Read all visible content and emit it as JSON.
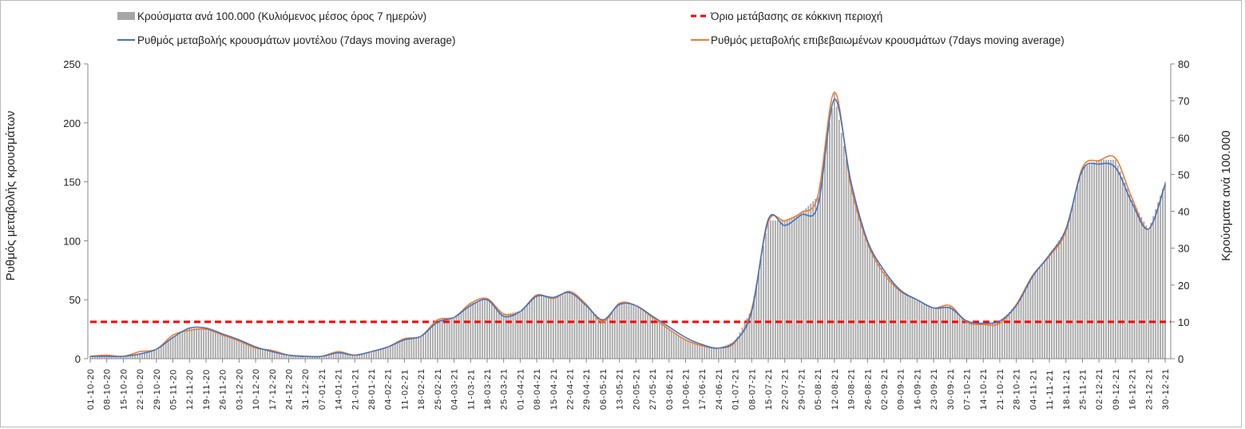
{
  "chart_data": {
    "type": "bar+line",
    "legend": {
      "bars": "Κρούσματα ανά 100.000 (Κυλιόμενος μέσος όρος 7 ημερών)",
      "threshold": "Όριο μετάβασης σε κόκκινη περιοχή",
      "model": "Ρυθμός μεταβολής κρουσμάτων μοντέλου (7days moving average)",
      "confirmed": "Ρυθμός μεταβολής επιβεβαιωμένων κρουσμάτων (7days moving average)"
    },
    "legend_position": "top",
    "ylabel_left": "Ρυθμός μεταβολής κρουσμάτων",
    "ylabel_right": "Κρούσματα ανά 100.000",
    "ylim_left": [
      0,
      250
    ],
    "yticks_left": [
      "0",
      "50",
      "100",
      "150",
      "200",
      "250"
    ],
    "ylim_right": [
      0,
      80
    ],
    "yticks_right": [
      "0",
      "10",
      "20",
      "30",
      "40",
      "50",
      "60",
      "70",
      "80"
    ],
    "threshold_right": 10,
    "colors": {
      "bars": "#a6a6a6",
      "threshold": "#ff0000",
      "model": "#4472c4",
      "confirmed": "#ed7d31"
    },
    "categories": [
      "01-10-20",
      "08-10-20",
      "15-10-20",
      "22-10-20",
      "29-10-20",
      "05-11-20",
      "12-11-20",
      "19-11-20",
      "26-11-20",
      "03-12-20",
      "10-12-20",
      "17-12-20",
      "24-12-20",
      "31-12-20",
      "07-01-21",
      "14-01-21",
      "21-01-21",
      "28-01-21",
      "04-02-21",
      "11-02-21",
      "18-02-21",
      "25-02-21",
      "04-03-21",
      "11-03-21",
      "18-03-21",
      "25-03-21",
      "01-04-21",
      "08-04-21",
      "15-04-21",
      "22-04-21",
      "29-04-21",
      "06-05-21",
      "13-05-21",
      "20-05-21",
      "27-05-21",
      "03-06-21",
      "10-06-21",
      "17-06-21",
      "24-06-21",
      "01-07-21",
      "08-07-21",
      "15-07-21",
      "22-07-21",
      "29-07-21",
      "05-08-21",
      "12-08-21",
      "19-08-21",
      "26-08-21",
      "02-09-21",
      "09-09-21",
      "16-09-21",
      "23-09-21",
      "30-09-21",
      "07-10-21",
      "14-10-21",
      "21-10-21",
      "28-10-21",
      "04-11-21",
      "11-11-21",
      "18-11-21",
      "25-11-21",
      "02-12-21",
      "09-12-21",
      "16-12-21",
      "23-12-21",
      "30-12-21"
    ],
    "model": [
      2,
      2,
      2,
      4,
      8,
      18,
      26,
      26,
      21,
      16,
      10,
      6,
      3,
      2,
      2,
      5,
      3,
      6,
      10,
      16,
      19,
      31,
      35,
      45,
      50,
      36,
      40,
      53,
      52,
      56,
      45,
      33,
      46,
      45,
      36,
      27,
      18,
      12,
      9,
      15,
      40,
      118,
      113,
      122,
      130,
      220,
      150,
      100,
      75,
      58,
      50,
      43,
      43,
      32,
      30,
      32,
      45,
      70,
      88,
      110,
      160,
      165,
      162,
      132,
      110,
      148
    ],
    "confirmed": [
      2,
      3,
      2,
      6,
      8,
      20,
      24,
      25,
      20,
      15,
      9,
      7,
      3,
      2,
      2,
      6,
      3,
      6,
      10,
      17,
      19,
      33,
      35,
      47,
      51,
      38,
      40,
      54,
      51,
      57,
      46,
      31,
      47,
      45,
      35,
      25,
      16,
      11,
      9,
      14,
      42,
      116,
      117,
      124,
      138,
      226,
      146,
      98,
      72,
      57,
      50,
      43,
      45,
      31,
      29,
      30,
      46,
      71,
      87,
      108,
      162,
      168,
      170,
      136,
      110,
      148
    ],
    "bars": [
      0.6,
      0.7,
      0.7,
      1.5,
      2.6,
      6,
      8.2,
      8.3,
      6.6,
      5,
      3.1,
      2,
      1,
      0.7,
      0.7,
      1.8,
      1,
      2,
      3.3,
      5.5,
      6.1,
      10.6,
      11.3,
      15,
      16.3,
      12,
      13,
      17.3,
      16.5,
      18.2,
      14.6,
      10,
      15,
      14.4,
      11.3,
      8,
      5.2,
      3.6,
      2.9,
      4.7,
      13.5,
      37.5,
      37.5,
      39.6,
      44,
      72,
      47,
      31.5,
      23.5,
      18.3,
      16,
      13.8,
      14.3,
      10,
      9.4,
      10,
      14.7,
      22.7,
      28,
      35,
      51.8,
      54,
      54,
      43,
      35,
      48
    ]
  }
}
